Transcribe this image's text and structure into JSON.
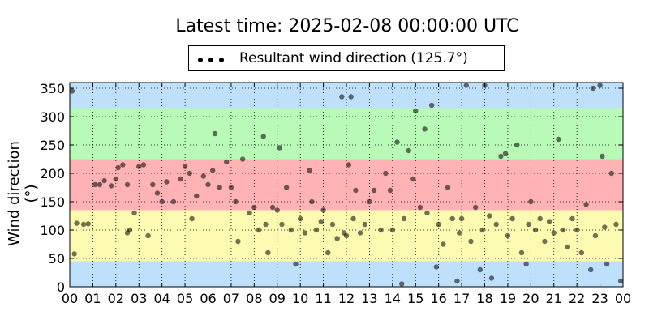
{
  "title": "Latest time: 2025-02-08 00:00:00 UTC",
  "legend": {
    "label": "Resultant wind direction (125.7°)"
  },
  "ylabel": "Wind direction (°)",
  "chart_data": {
    "type": "scatter",
    "title": "Latest time: 2025-02-08 00:00:00 UTC",
    "xlabel": "",
    "ylabel": "Wind direction (°)",
    "xlim": [
      0,
      24
    ],
    "ylim": [
      0,
      360
    ],
    "grid": true,
    "legend_position": "top",
    "x_tick_labels": [
      "00",
      "01",
      "02",
      "03",
      "04",
      "05",
      "06",
      "07",
      "08",
      "09",
      "10",
      "11",
      "12",
      "13",
      "14",
      "15",
      "16",
      "17",
      "18",
      "19",
      "20",
      "21",
      "22",
      "23",
      "00"
    ],
    "y_ticks": [
      0,
      50,
      100,
      150,
      200,
      250,
      300,
      350
    ],
    "bands": [
      {
        "from": 0,
        "to": 45,
        "color": "#bfe0fb"
      },
      {
        "from": 45,
        "to": 135,
        "color": "#fdfbb1"
      },
      {
        "from": 135,
        "to": 225,
        "color": "#ffb3b5"
      },
      {
        "from": 225,
        "to": 315,
        "color": "#b8fbb6"
      },
      {
        "from": 315,
        "to": 360,
        "color": "#bfe0fb"
      }
    ],
    "series": [
      {
        "name": "Resultant wind direction (125.7°)",
        "color": "#000000",
        "points": [
          [
            0.1,
            345
          ],
          [
            0.2,
            58
          ],
          [
            0.3,
            112
          ],
          [
            0.6,
            110
          ],
          [
            0.8,
            111
          ],
          [
            1.1,
            180
          ],
          [
            1.3,
            180
          ],
          [
            1.5,
            187
          ],
          [
            1.8,
            178
          ],
          [
            2.0,
            190
          ],
          [
            2.1,
            210
          ],
          [
            2.3,
            215
          ],
          [
            2.5,
            180
          ],
          [
            2.5,
            95
          ],
          [
            2.6,
            100
          ],
          [
            2.8,
            130
          ],
          [
            3.0,
            212
          ],
          [
            3.2,
            215
          ],
          [
            3.4,
            90
          ],
          [
            3.6,
            180
          ],
          [
            3.8,
            165
          ],
          [
            4.0,
            150
          ],
          [
            4.2,
            185
          ],
          [
            4.5,
            150
          ],
          [
            4.8,
            190
          ],
          [
            5.0,
            212
          ],
          [
            5.2,
            200
          ],
          [
            5.3,
            120
          ],
          [
            5.5,
            160
          ],
          [
            5.8,
            195
          ],
          [
            6.0,
            180
          ],
          [
            6.2,
            205
          ],
          [
            6.3,
            270
          ],
          [
            6.5,
            175
          ],
          [
            6.8,
            220
          ],
          [
            7.0,
            175
          ],
          [
            7.2,
            150
          ],
          [
            7.3,
            80
          ],
          [
            7.5,
            225
          ],
          [
            7.8,
            130
          ],
          [
            8.0,
            140
          ],
          [
            8.2,
            100
          ],
          [
            8.4,
            265
          ],
          [
            8.5,
            110
          ],
          [
            8.6,
            60
          ],
          [
            8.8,
            140
          ],
          [
            9.0,
            135
          ],
          [
            9.1,
            245
          ],
          [
            9.2,
            110
          ],
          [
            9.4,
            175
          ],
          [
            9.6,
            100
          ],
          [
            9.8,
            40
          ],
          [
            10.0,
            120
          ],
          [
            10.2,
            95
          ],
          [
            10.4,
            205
          ],
          [
            10.5,
            150
          ],
          [
            10.7,
            100
          ],
          [
            10.9,
            115
          ],
          [
            11.0,
            135
          ],
          [
            11.2,
            60
          ],
          [
            11.4,
            110
          ],
          [
            11.6,
            85
          ],
          [
            11.8,
            335
          ],
          [
            11.9,
            95
          ],
          [
            12.0,
            90
          ],
          [
            12.1,
            215
          ],
          [
            12.2,
            335
          ],
          [
            12.3,
            120
          ],
          [
            12.4,
            170
          ],
          [
            12.6,
            95
          ],
          [
            12.8,
            110
          ],
          [
            13.0,
            150
          ],
          [
            13.2,
            170
          ],
          [
            13.5,
            100
          ],
          [
            13.7,
            200
          ],
          [
            13.9,
            170
          ],
          [
            14.0,
            100
          ],
          [
            14.2,
            255
          ],
          [
            14.4,
            5
          ],
          [
            14.5,
            120
          ],
          [
            14.7,
            240
          ],
          [
            14.9,
            190
          ],
          [
            15.0,
            310
          ],
          [
            15.2,
            140
          ],
          [
            15.4,
            278
          ],
          [
            15.5,
            130
          ],
          [
            15.7,
            320
          ],
          [
            15.9,
            35
          ],
          [
            16.0,
            110
          ],
          [
            16.2,
            75
          ],
          [
            16.4,
            175
          ],
          [
            16.6,
            120
          ],
          [
            16.8,
            10
          ],
          [
            16.9,
            95
          ],
          [
            17.0,
            120
          ],
          [
            17.2,
            355
          ],
          [
            17.4,
            80
          ],
          [
            17.6,
            140
          ],
          [
            17.8,
            30
          ],
          [
            17.9,
            100
          ],
          [
            18.0,
            355
          ],
          [
            18.2,
            125
          ],
          [
            18.3,
            15
          ],
          [
            18.5,
            110
          ],
          [
            18.7,
            230
          ],
          [
            18.9,
            235
          ],
          [
            19.0,
            90
          ],
          [
            19.2,
            120
          ],
          [
            19.4,
            250
          ],
          [
            19.6,
            60
          ],
          [
            19.8,
            40
          ],
          [
            19.9,
            110
          ],
          [
            20.0,
            150
          ],
          [
            20.2,
            100
          ],
          [
            20.4,
            120
          ],
          [
            20.6,
            80
          ],
          [
            20.8,
            115
          ],
          [
            21.0,
            95
          ],
          [
            21.2,
            260
          ],
          [
            21.4,
            100
          ],
          [
            21.6,
            70
          ],
          [
            21.8,
            120
          ],
          [
            22.0,
            100
          ],
          [
            22.2,
            60
          ],
          [
            22.4,
            145
          ],
          [
            22.6,
            30
          ],
          [
            22.7,
            350
          ],
          [
            22.8,
            90
          ],
          [
            23.0,
            355
          ],
          [
            23.1,
            230
          ],
          [
            23.2,
            105
          ],
          [
            23.3,
            40
          ],
          [
            23.5,
            200
          ],
          [
            23.7,
            110
          ],
          [
            23.9,
            10
          ]
        ]
      }
    ]
  }
}
